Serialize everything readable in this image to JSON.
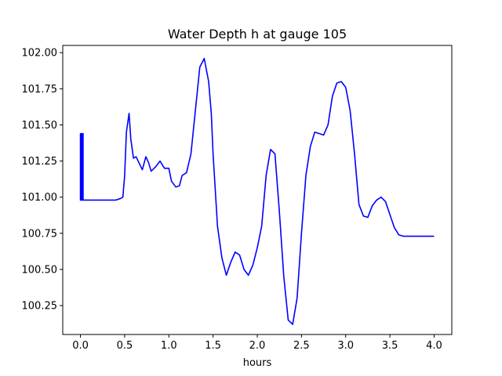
{
  "chart_data": {
    "type": "line",
    "title": "Water Depth h at gauge 105",
    "xlabel": "hours",
    "ylabel": "",
    "xlim": [
      -0.2,
      4.2
    ],
    "ylim": [
      100.05,
      102.05
    ],
    "x_ticks": [
      0.0,
      0.5,
      1.0,
      1.5,
      2.0,
      2.5,
      3.0,
      3.5,
      4.0
    ],
    "x_tick_labels": [
      "0.0",
      "0.5",
      "1.0",
      "1.5",
      "2.0",
      "2.5",
      "3.0",
      "3.5",
      "4.0"
    ],
    "y_ticks": [
      100.25,
      100.5,
      100.75,
      101.0,
      101.25,
      101.5,
      101.75,
      102.0
    ],
    "y_tick_labels": [
      "100.25",
      "100.50",
      "100.75",
      "101.00",
      "101.25",
      "101.50",
      "101.75",
      "102.00"
    ],
    "grid": false,
    "series": [
      {
        "color": "#0000ff",
        "x": [
          0.0,
          0.0,
          0.0,
          0.01,
          0.01,
          0.01,
          0.02,
          0.02,
          0.02,
          0.03,
          0.03,
          0.03,
          0.1,
          0.2,
          0.3,
          0.4,
          0.45,
          0.48,
          0.5,
          0.52,
          0.55,
          0.57,
          0.6,
          0.63,
          0.66,
          0.7,
          0.74,
          0.77,
          0.8,
          0.85,
          0.9,
          0.95,
          1.0,
          1.03,
          1.08,
          1.12,
          1.15,
          1.2,
          1.25,
          1.3,
          1.35,
          1.4,
          1.45,
          1.48,
          1.5,
          1.55,
          1.6,
          1.65,
          1.7,
          1.75,
          1.8,
          1.85,
          1.9,
          1.95,
          2.0,
          2.05,
          2.1,
          2.15,
          2.2,
          2.25,
          2.3,
          2.35,
          2.4,
          2.45,
          2.5,
          2.55,
          2.6,
          2.65,
          2.7,
          2.75,
          2.8,
          2.85,
          2.9,
          2.95,
          3.0,
          3.05,
          3.1,
          3.15,
          3.2,
          3.25,
          3.3,
          3.35,
          3.4,
          3.45,
          3.5,
          3.55,
          3.6,
          3.65,
          3.7,
          3.75,
          3.8,
          3.85,
          3.9,
          3.95,
          4.0
        ],
        "y": [
          100.98,
          101.44,
          100.98,
          100.98,
          101.44,
          100.98,
          100.98,
          101.44,
          100.98,
          100.98,
          101.44,
          100.98,
          100.98,
          100.98,
          100.98,
          100.98,
          100.99,
          101.0,
          101.15,
          101.45,
          101.58,
          101.4,
          101.27,
          101.28,
          101.24,
          101.19,
          101.28,
          101.24,
          101.18,
          101.21,
          101.25,
          101.2,
          101.2,
          101.11,
          101.07,
          101.08,
          101.15,
          101.17,
          101.3,
          101.6,
          101.9,
          101.96,
          101.8,
          101.58,
          101.3,
          100.8,
          100.58,
          100.46,
          100.55,
          100.62,
          100.6,
          100.5,
          100.46,
          100.53,
          100.65,
          100.8,
          101.15,
          101.33,
          101.3,
          100.9,
          100.45,
          100.15,
          100.12,
          100.3,
          100.75,
          101.15,
          101.35,
          101.45,
          101.44,
          101.43,
          101.5,
          101.7,
          101.79,
          101.8,
          101.76,
          101.6,
          101.3,
          100.95,
          100.87,
          100.86,
          100.94,
          100.98,
          101.0,
          100.97,
          100.88,
          100.79,
          100.74,
          100.73,
          100.73,
          100.73,
          100.73,
          100.73,
          100.73,
          100.73,
          100.73
        ]
      }
    ]
  }
}
